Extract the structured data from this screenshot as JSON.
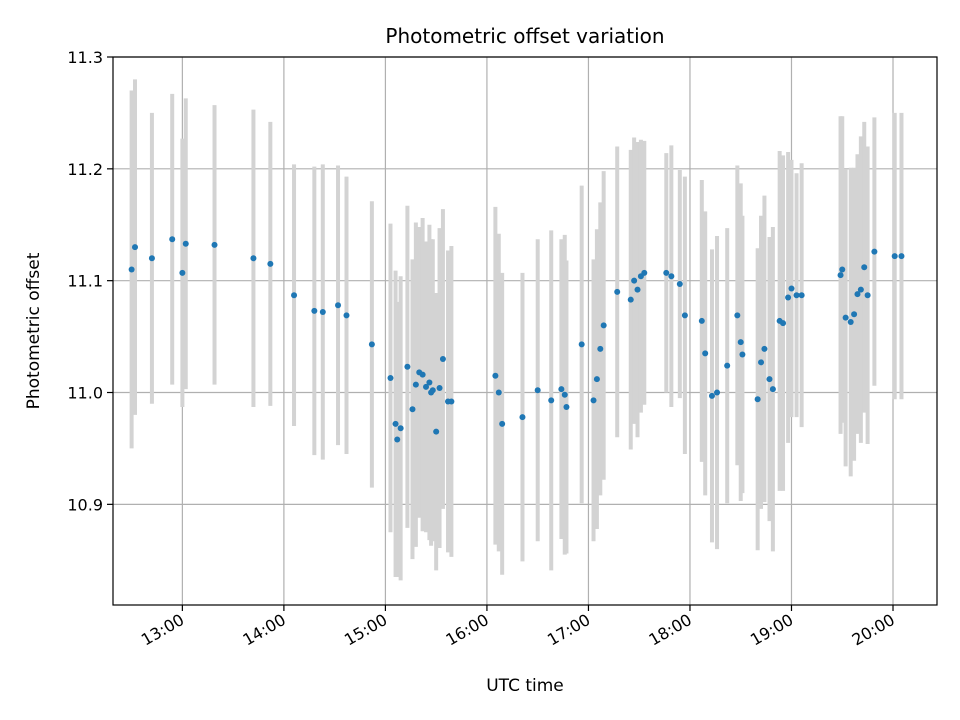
{
  "chart_data": {
    "type": "scatter",
    "title": "Photometric offset variation",
    "xlabel": "UTC time",
    "ylabel": "Photometric offset",
    "x_axis_type": "time",
    "xlim": [
      "12:19",
      "20:26"
    ],
    "ylim": [
      10.81,
      11.3
    ],
    "x_ticks": [
      "13:00",
      "14:00",
      "15:00",
      "16:00",
      "17:00",
      "18:00",
      "19:00",
      "20:00"
    ],
    "y_ticks": [
      "10.9",
      "11.0",
      "11.1",
      "11.2",
      "11.3"
    ],
    "grid": true,
    "legend": "none",
    "colors": {
      "point": "#1f77b4",
      "error_bar": "#d3d3d3",
      "grid": "#b0b0b0"
    },
    "series": [
      {
        "x": [
          "12:30",
          "12:32",
          "12:42",
          "12:54",
          "13:00",
          "13:02",
          "13:19",
          "13:42",
          "13:52",
          "14:06",
          "14:18",
          "14:23",
          "14:32",
          "14:37",
          "14:52",
          "15:03",
          "15:06",
          "15:07",
          "15:09",
          "15:13",
          "15:16",
          "15:18",
          "15:20",
          "15:22",
          "15:24",
          "15:26",
          "15:27",
          "15:28",
          "15:30",
          "15:32",
          "15:34",
          "15:37",
          "15:39",
          "16:05",
          "16:07",
          "16:09",
          "16:21",
          "16:30",
          "16:38",
          "16:44",
          "16:46",
          "16:47",
          "16:56",
          "17:03",
          "17:05",
          "17:07",
          "17:09",
          "17:17",
          "17:25",
          "17:27",
          "17:29",
          "17:31",
          "17:33",
          "17:46",
          "17:49",
          "17:54",
          "17:57",
          "18:07",
          "18:09",
          "18:13",
          "18:16",
          "18:22",
          "18:28",
          "18:30",
          "18:31",
          "18:40",
          "18:42",
          "18:44",
          "18:47",
          "18:49",
          "18:53",
          "18:55",
          "18:58",
          "19:00",
          "19:03",
          "19:06",
          "19:29",
          "19:30",
          "19:32",
          "19:35",
          "19:37",
          "19:39",
          "19:41",
          "19:43",
          "19:45",
          "19:49",
          "20:01",
          "20:05"
        ],
        "y": [
          11.11,
          11.13,
          11.12,
          11.137,
          11.107,
          11.133,
          11.132,
          11.12,
          11.115,
          11.087,
          11.073,
          11.072,
          11.078,
          11.069,
          11.043,
          11.013,
          10.972,
          10.958,
          10.968,
          11.023,
          10.985,
          11.007,
          11.018,
          11.016,
          11.005,
          11.009,
          11.0,
          11.002,
          10.965,
          11.004,
          11.03,
          10.992,
          10.992,
          11.015,
          11.0,
          10.972,
          10.978,
          11.002,
          10.993,
          11.003,
          10.998,
          10.987,
          11.043,
          10.993,
          11.012,
          11.039,
          11.06,
          11.09,
          11.083,
          11.1,
          11.092,
          11.104,
          11.107,
          11.107,
          11.104,
          11.097,
          11.069,
          11.064,
          11.035,
          10.997,
          11.0,
          11.024,
          11.069,
          11.045,
          11.034,
          10.994,
          11.027,
          11.039,
          11.012,
          11.003,
          11.064,
          11.062,
          11.085,
          11.093,
          11.087,
          11.087,
          11.105,
          11.11,
          11.067,
          11.063,
          11.07,
          11.088,
          11.092,
          11.112,
          11.087,
          11.126,
          11.122,
          11.122
        ],
        "error": [
          0.16,
          0.15,
          0.13,
          0.13,
          0.12,
          0.13,
          0.125,
          0.133,
          0.127,
          0.117,
          0.129,
          0.132,
          0.125,
          0.124,
          0.128,
          0.138,
          0.137,
          0.123,
          0.136,
          0.144,
          0.134,
          0.145,
          0.13,
          0.14,
          0.13,
          0.141,
          0.137,
          0.135,
          0.124,
          0.143,
          0.134,
          0.135,
          0.139,
          0.151,
          0.142,
          0.135,
          0.129,
          0.135,
          0.152,
          0.134,
          0.143,
          0.131,
          0.142,
          0.126,
          0.134,
          0.131,
          0.138,
          0.13,
          0.134,
          0.128,
          0.132,
          0.122,
          0.118,
          0.107,
          0.117,
          0.102,
          0.124,
          0.126,
          0.127,
          0.131,
          0.14,
          0.123,
          0.134,
          0.142,
          0.124,
          0.135,
          0.131,
          0.137,
          0.127,
          0.145,
          0.152,
          0.15,
          0.13,
          0.115,
          0.109,
          0.118,
          0.142,
          0.137,
          0.133,
          0.138,
          0.131,
          0.125,
          0.137,
          0.13,
          0.133,
          0.12,
          0.128,
          0.128
        ]
      }
    ]
  }
}
